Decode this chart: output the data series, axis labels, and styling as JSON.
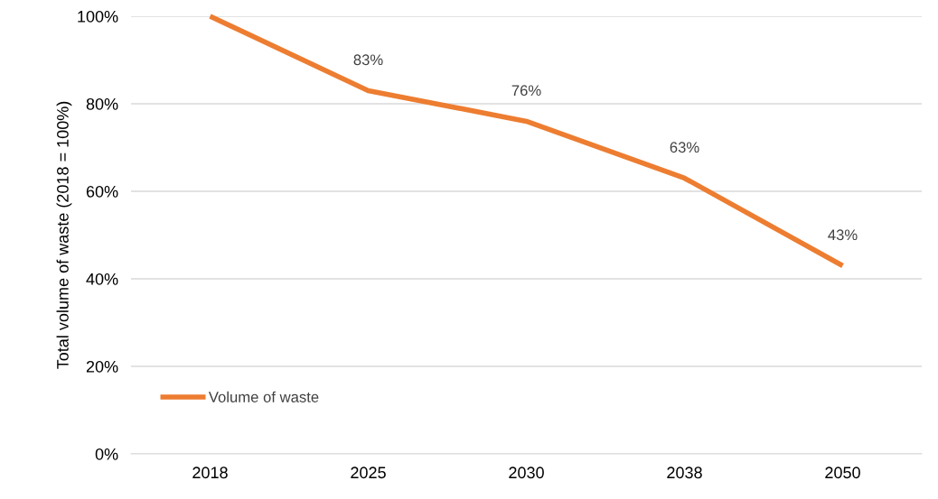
{
  "chart_data": {
    "type": "line",
    "ylabel": "Total volume of waste (2018 = 100%)",
    "categories": [
      "2018",
      "2025",
      "2030",
      "2038",
      "2050"
    ],
    "series": [
      {
        "name": "Volume of waste",
        "color": "#ed7d31",
        "values": [
          100,
          83,
          76,
          63,
          43
        ],
        "value_labels": [
          null,
          "83%",
          "76%",
          "63%",
          "43%"
        ]
      }
    ],
    "ylim": [
      0,
      100
    ],
    "yticks": [
      {
        "value": 0,
        "label": "0%"
      },
      {
        "value": 20,
        "label": "20%"
      },
      {
        "value": 40,
        "label": "40%"
      },
      {
        "value": 60,
        "label": "60%"
      },
      {
        "value": 80,
        "label": "80%"
      },
      {
        "value": 100,
        "label": "100%"
      }
    ],
    "grid": "y",
    "legend": "bottom left",
    "marker": "none",
    "line_style": "solid"
  }
}
